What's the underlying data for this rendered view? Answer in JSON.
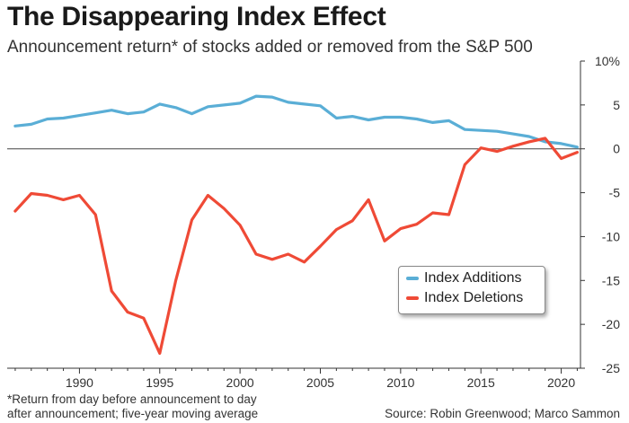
{
  "header": {
    "title": "The Disappearing Index Effect",
    "subtitle": "Announcement return* of stocks added or removed from the S&P 500"
  },
  "footer": {
    "footnote_line1": "*Return from day before announcement to day",
    "footnote_line2": "after announcement; five-year moving average",
    "source": "Source: Robin Greenwood; Marco Sammon"
  },
  "colors": {
    "additions": "#5aaed6",
    "deletions": "#ef4a36",
    "axis": "#333333",
    "zero_line": "#444444"
  },
  "chart_data": {
    "type": "line",
    "title": "The Disappearing Index Effect",
    "subtitle": "Announcement return* of stocks added or removed from the S&P 500",
    "xlim": [
      1985.5,
      2021.2
    ],
    "ylim": [
      -25,
      10
    ],
    "x_ticks": [
      1990,
      1995,
      2000,
      2005,
      2010,
      2015,
      2020
    ],
    "y_ticks": [
      {
        "value": 10,
        "label": "10%"
      },
      {
        "value": 5,
        "label": "5"
      },
      {
        "value": 0,
        "label": "0"
      },
      {
        "value": -5,
        "label": "-5"
      },
      {
        "value": -10,
        "label": "-10"
      },
      {
        "value": -15,
        "label": "-15"
      },
      {
        "value": -20,
        "label": "-20"
      },
      {
        "value": -25,
        "label": "-25"
      }
    ],
    "grid": false,
    "legend_position": "lower-right",
    "series": [
      {
        "name": "Index Additions",
        "color": "#5aaed6",
        "x": [
          1986,
          1987,
          1988,
          1989,
          1990,
          1991,
          1992,
          1993,
          1994,
          1995,
          1996,
          1997,
          1998,
          1999,
          2000,
          2001,
          2002,
          2003,
          2004,
          2005,
          2006,
          2007,
          2008,
          2009,
          2010,
          2011,
          2012,
          2013,
          2014,
          2015,
          2016,
          2017,
          2018,
          2019,
          2020,
          2021
        ],
        "y": [
          2.6,
          2.8,
          3.4,
          3.5,
          3.8,
          4.1,
          4.4,
          4.0,
          4.2,
          5.1,
          4.7,
          4.0,
          4.8,
          5.0,
          5.2,
          6.0,
          5.9,
          5.3,
          5.1,
          4.9,
          3.5,
          3.7,
          3.3,
          3.6,
          3.6,
          3.4,
          3.0,
          3.2,
          2.2,
          2.1,
          2.0,
          1.7,
          1.4,
          0.8,
          0.6,
          0.2
        ]
      },
      {
        "name": "Index Deletions",
        "color": "#ef4a36",
        "x": [
          1986,
          1987,
          1988,
          1989,
          1990,
          1991,
          1992,
          1993,
          1994,
          1995,
          1996,
          1997,
          1998,
          1999,
          2000,
          2001,
          2002,
          2003,
          2004,
          2005,
          2006,
          2007,
          2008,
          2009,
          2010,
          2011,
          2012,
          2013,
          2014,
          2015,
          2016,
          2017,
          2018,
          2019,
          2020,
          2021
        ],
        "y": [
          -7.1,
          -5.1,
          -5.3,
          -5.8,
          -5.3,
          -7.5,
          -16.2,
          -18.6,
          -19.3,
          -23.3,
          -15.0,
          -8.1,
          -5.3,
          -6.8,
          -8.7,
          -12.0,
          -12.6,
          -12.0,
          -12.9,
          -11.1,
          -9.2,
          -8.2,
          -5.8,
          -10.5,
          -9.1,
          -8.6,
          -7.3,
          -7.5,
          -1.8,
          0.1,
          -0.3,
          0.3,
          0.8,
          1.2,
          -1.1,
          -0.4
        ]
      }
    ]
  }
}
